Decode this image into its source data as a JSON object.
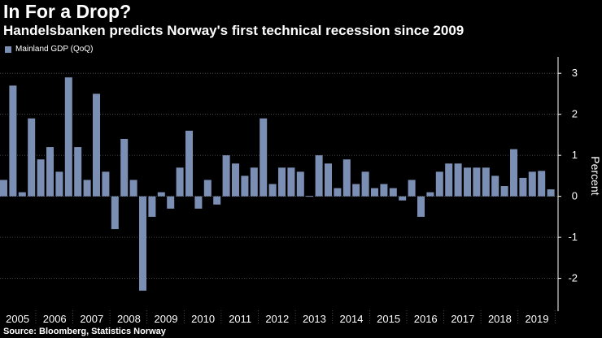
{
  "title": "In For a Drop?",
  "subtitle": "Handelsbanken predicts Norway's first technical recession since 2009",
  "source": "Source: Bloomberg, Statistics Norway",
  "colors": {
    "bar": "#7b8fb4",
    "background": "#000000",
    "grid": "#5a5a5a",
    "text": "#ffffff"
  },
  "chart_data": {
    "type": "bar",
    "legend": [
      "Mainland GDP (QoQ)"
    ],
    "legend_position": "top-left",
    "ylabel": "Percent",
    "ylim": [
      -2.8,
      3.4
    ],
    "yticks": [
      -2,
      -1,
      0,
      1,
      2,
      3
    ],
    "grid": true,
    "year_labels": [
      "2005",
      "2006",
      "2007",
      "2008",
      "2009",
      "2010",
      "2011",
      "2012",
      "2013",
      "2014",
      "2015",
      "2016",
      "2017",
      "2018",
      "2019"
    ],
    "series": [
      {
        "name": "Mainland GDP (QoQ)",
        "values": [
          0.4,
          2.7,
          0.1,
          1.9,
          0.9,
          1.2,
          0.6,
          2.9,
          1.2,
          0.4,
          2.5,
          0.6,
          -0.8,
          1.4,
          0.4,
          -2.3,
          -0.5,
          0.1,
          -0.3,
          0.7,
          1.6,
          -0.3,
          0.4,
          -0.2,
          1.0,
          0.8,
          0.5,
          0.7,
          1.9,
          0.3,
          0.7,
          0.7,
          0.6,
          0.0,
          1.0,
          0.8,
          0.2,
          0.9,
          0.3,
          0.6,
          0.2,
          0.3,
          0.2,
          -0.1,
          0.4,
          -0.5,
          0.1,
          0.6,
          0.8,
          0.8,
          0.7,
          0.7,
          0.7,
          0.5,
          0.25,
          1.15,
          0.45,
          0.6,
          0.62,
          0.17
        ]
      }
    ]
  }
}
